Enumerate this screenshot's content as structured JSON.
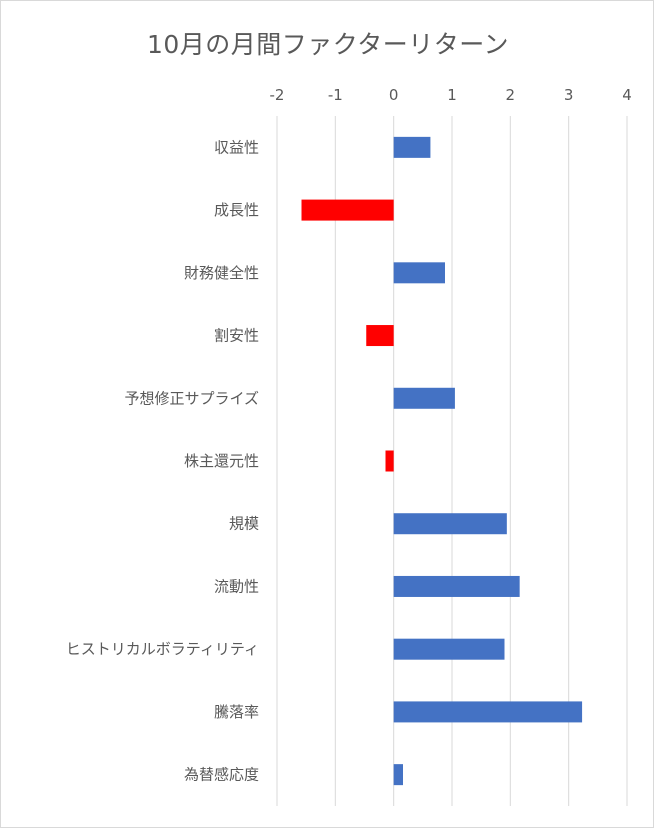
{
  "chart_data": {
    "type": "bar",
    "orientation": "horizontal",
    "title": "10月の月間ファクターリターン",
    "xlabel": "",
    "ylabel": "",
    "xlim": [
      -2,
      4
    ],
    "xticks": [
      -2,
      -1,
      0,
      1,
      2,
      3,
      4
    ],
    "xtick_labels": [
      "-2",
      "-1",
      "0",
      "1",
      "2",
      "3",
      "4"
    ],
    "axis_position": "top",
    "grid": true,
    "legend": "none",
    "categories": [
      "収益性",
      "成長性",
      "財務健全性",
      "割安性",
      "予想修正サプライズ",
      "株主還元性",
      "規模",
      "流動性",
      "ヒストリカルボラティリティ",
      "騰落率",
      "為替感応度"
    ],
    "values": [
      0.63,
      -1.58,
      0.88,
      -0.47,
      1.05,
      -0.14,
      1.94,
      2.16,
      1.9,
      3.23,
      0.16
    ],
    "colors": {
      "positive": "#4472C4",
      "negative": "#FF0000",
      "grid": "#D9D9D9",
      "text": "#595959"
    }
  }
}
